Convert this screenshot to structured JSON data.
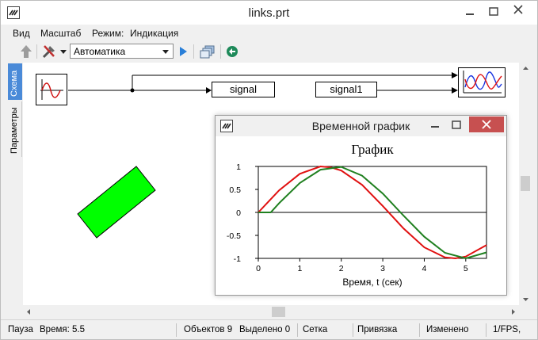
{
  "window": {
    "title": "links.prt"
  },
  "menu": [
    "Вид",
    "Масштаб",
    "Режим:",
    "Индикация"
  ],
  "toolbar": {
    "mode_value": "Автоматика"
  },
  "side_tabs": {
    "schema": "Схема",
    "params": "Параметры"
  },
  "blocks": {
    "signal": "signal",
    "signal1": "signal1"
  },
  "plot_window": {
    "title": "Временной график",
    "chart_data": {
      "type": "line",
      "title": "График",
      "xlabel": "Время, t (сек)",
      "ylabel": "",
      "xlim": [
        0,
        5.5
      ],
      "ylim": [
        -1,
        1
      ],
      "x_ticks": [
        "0",
        "1",
        "2",
        "3",
        "4",
        "5"
      ],
      "y_ticks": [
        "1",
        "0.5",
        "0",
        "-0.5",
        "-1"
      ],
      "grid": false,
      "series": [
        {
          "color": "#e01010",
          "x": [
            0,
            0.5,
            1,
            1.5,
            1.75,
            2,
            2.5,
            3,
            3.5,
            4,
            4.5,
            4.75,
            5,
            5.5
          ],
          "y": [
            0,
            0.48,
            0.84,
            1.0,
            0.98,
            0.91,
            0.6,
            0.14,
            -0.35,
            -0.76,
            -0.98,
            -1.0,
            -0.96,
            -0.71
          ]
        },
        {
          "color": "#208020",
          "x": [
            0,
            0.3,
            0.5,
            1,
            1.5,
            2,
            2.5,
            3,
            3.5,
            4,
            4.5,
            5,
            5.5
          ],
          "y": [
            0,
            0.0,
            0.2,
            0.64,
            0.93,
            0.99,
            0.8,
            0.41,
            -0.07,
            -0.53,
            -0.88,
            -1.0,
            -0.87
          ]
        }
      ]
    }
  },
  "status": {
    "state": "Пауза",
    "time": "Время: 5.5",
    "objects": "Объектов 9",
    "selected": "Выделено 0",
    "grid": "Сетка",
    "snap": "Привязка",
    "modified": "Изменено",
    "fps": "1/FPS,"
  },
  "colors": {
    "accent_tab": "#4a8ad8",
    "green_block": "#00ff00",
    "close_red": "#c75050"
  }
}
